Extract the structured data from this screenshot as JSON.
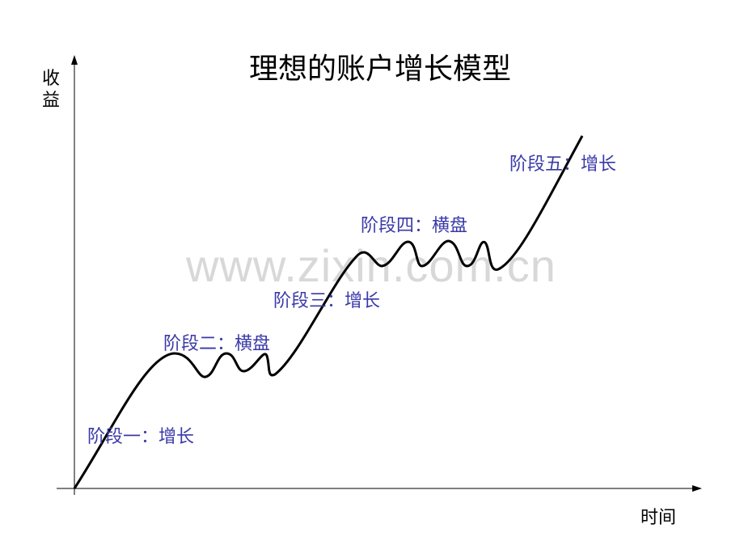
{
  "title": "理想的账户增长模型",
  "y_axis_label": "收益",
  "x_axis_label": "时间",
  "watermark": "www.zixin.com.cn",
  "stages": [
    {
      "label": "阶段一：增长"
    },
    {
      "label": "阶段二：横盘"
    },
    {
      "label": "阶段三：增长"
    },
    {
      "label": "阶段四：横盘"
    },
    {
      "label": "阶段五：增长"
    }
  ],
  "colors": {
    "label": "#3a3aa8",
    "curve": "#000000",
    "watermark": "#d8d8d8"
  }
}
